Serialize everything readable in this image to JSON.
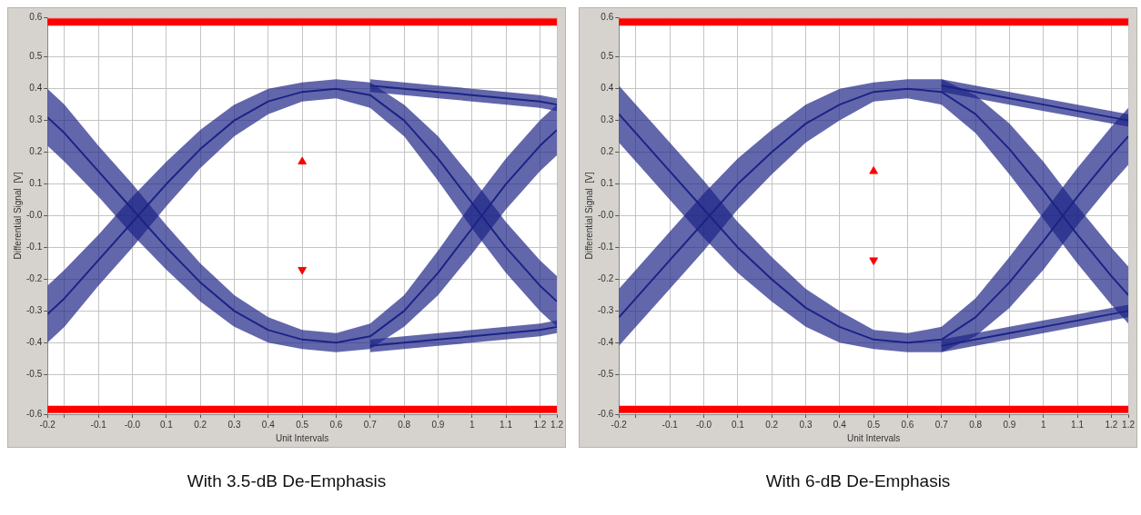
{
  "chart_data": [
    {
      "type": "line",
      "xlabel": "Unit Intervals",
      "ylabel": "Differential Signal  [V]",
      "annotations": [
        "With 3.5-dB De-Emphasis"
      ],
      "xlim": [
        -0.25,
        1.25
      ],
      "xticks": [
        {
          "value": -0.25,
          "label": "-0.2"
        },
        {
          "value": -0.2,
          "label": null
        },
        -0.1,
        {
          "value": 0,
          "label": "-0.0"
        },
        0.1,
        0.2,
        0.3,
        0.4,
        0.5,
        0.6,
        0.7,
        0.8,
        0.9,
        1.0,
        1.1,
        1.2,
        {
          "value": 1.25,
          "label": "1.2"
        }
      ],
      "ylim": [
        -0.625,
        0.625
      ],
      "yticks": [
        {
          "value": -0.625,
          "label": "-0.6"
        },
        -0.5,
        -0.4,
        -0.3,
        -0.2,
        -0.1,
        {
          "value": 0,
          "label": "-0.0"
        },
        0.1,
        0.2,
        0.3,
        0.4,
        0.5,
        {
          "value": 0.625,
          "label": "0.6"
        }
      ],
      "grid": true,
      "legend": false,
      "ref_lines": [
        {
          "axis": "y",
          "value": 0.61,
          "color": "#ff0000"
        },
        {
          "axis": "y",
          "value": -0.61,
          "color": "#ff0000"
        }
      ],
      "series": [
        {
          "type": "line",
          "color": "#1c2386",
          "x": [
            -0.25,
            -0.2,
            -0.1,
            0,
            0.1,
            0.2,
            0.3,
            0.4,
            0.5,
            0.6,
            0.7,
            0.8,
            0.9,
            1.0,
            1.1,
            1.2,
            1.25
          ],
          "values": [
            -0.31,
            -0.26,
            -0.14,
            -0.02,
            0.1,
            0.21,
            0.3,
            0.36,
            0.39,
            0.4,
            0.38,
            0.3,
            0.18,
            0.04,
            -0.1,
            -0.22,
            -0.27
          ],
          "lower": [
            -0.4,
            -0.35,
            -0.22,
            -0.1,
            0.03,
            0.15,
            0.25,
            0.32,
            0.36,
            0.37,
            0.34,
            0.25,
            0.11,
            -0.04,
            -0.18,
            -0.3,
            -0.35
          ],
          "upper": [
            -0.22,
            -0.17,
            -0.06,
            0.06,
            0.17,
            0.27,
            0.35,
            0.4,
            0.42,
            0.43,
            0.42,
            0.35,
            0.25,
            0.12,
            -0.02,
            -0.14,
            -0.19
          ]
        },
        {
          "type": "line",
          "color": "#1c2386",
          "x": [
            -0.25,
            -0.2,
            -0.1,
            0,
            0.1,
            0.2,
            0.3,
            0.4,
            0.5,
            0.6,
            0.7,
            0.8,
            0.9,
            1.0,
            1.1,
            1.2,
            1.25
          ],
          "values": [
            0.31,
            0.26,
            0.14,
            0.02,
            -0.1,
            -0.21,
            -0.3,
            -0.36,
            -0.39,
            -0.4,
            -0.38,
            -0.3,
            -0.18,
            -0.04,
            0.1,
            0.22,
            0.27
          ],
          "lower": [
            0.22,
            0.17,
            0.06,
            -0.06,
            -0.17,
            -0.27,
            -0.35,
            -0.4,
            -0.42,
            -0.43,
            -0.42,
            -0.35,
            -0.25,
            -0.12,
            0.02,
            0.14,
            0.19
          ],
          "upper": [
            0.4,
            0.35,
            0.22,
            0.1,
            -0.03,
            -0.15,
            -0.25,
            -0.32,
            -0.36,
            -0.37,
            -0.34,
            -0.25,
            -0.11,
            0.04,
            0.18,
            0.3,
            0.35
          ]
        },
        {
          "type": "line",
          "color": "#1c2386",
          "x": [
            0.7,
            0.8,
            0.9,
            1.0,
            1.1,
            1.2,
            1.25
          ],
          "values": [
            0.41,
            0.4,
            0.39,
            0.38,
            0.37,
            0.36,
            0.35
          ],
          "lower": [
            0.39,
            0.38,
            0.37,
            0.36,
            0.35,
            0.34,
            0.33
          ],
          "upper": [
            0.43,
            0.42,
            0.41,
            0.4,
            0.39,
            0.38,
            0.37
          ]
        },
        {
          "type": "line",
          "color": "#1c2386",
          "x": [
            0.7,
            0.8,
            0.9,
            1.0,
            1.1,
            1.2,
            1.25
          ],
          "values": [
            -0.41,
            -0.4,
            -0.39,
            -0.38,
            -0.37,
            -0.36,
            -0.35
          ],
          "lower": [
            -0.43,
            -0.42,
            -0.41,
            -0.4,
            -0.39,
            -0.38,
            -0.37
          ],
          "upper": [
            -0.39,
            -0.38,
            -0.37,
            -0.36,
            -0.35,
            -0.34,
            -0.33
          ]
        },
        {
          "type": "scatter",
          "color": "#ff0000",
          "marker": "triangle",
          "x": [
            0.5,
            0.5
          ],
          "values": [
            0.17,
            -0.17
          ]
        }
      ]
    },
    {
      "type": "line",
      "xlabel": "Unit Intervals",
      "ylabel": "Differential Signal  [V]",
      "annotations": [
        "With 6-dB De-Emphasis"
      ],
      "xlim": [
        -0.25,
        1.25
      ],
      "xticks": [
        {
          "value": -0.25,
          "label": "-0.2"
        },
        {
          "value": -0.2,
          "label": null
        },
        -0.1,
        {
          "value": 0,
          "label": "-0.0"
        },
        0.1,
        0.2,
        0.3,
        0.4,
        0.5,
        0.6,
        0.7,
        0.8,
        0.9,
        1.0,
        1.1,
        1.2,
        {
          "value": 1.25,
          "label": "1.2"
        }
      ],
      "ylim": [
        -0.625,
        0.625
      ],
      "yticks": [
        {
          "value": -0.625,
          "label": "-0.6"
        },
        -0.5,
        -0.4,
        -0.3,
        -0.2,
        -0.1,
        {
          "value": 0,
          "label": "-0.0"
        },
        0.1,
        0.2,
        0.3,
        0.4,
        0.5,
        {
          "value": 0.625,
          "label": "0.6"
        }
      ],
      "grid": true,
      "legend": false,
      "ref_lines": [
        {
          "axis": "y",
          "value": 0.61,
          "color": "#ff0000"
        },
        {
          "axis": "y",
          "value": -0.61,
          "color": "#ff0000"
        }
      ],
      "series": [
        {
          "type": "line",
          "color": "#1c2386",
          "x": [
            -0.25,
            -0.2,
            -0.1,
            0,
            0.1,
            0.2,
            0.3,
            0.4,
            0.5,
            0.6,
            0.7,
            0.8,
            0.9,
            1.0,
            1.1,
            1.2,
            1.25
          ],
          "values": [
            -0.32,
            -0.26,
            -0.14,
            -0.02,
            0.1,
            0.2,
            0.29,
            0.35,
            0.39,
            0.4,
            0.39,
            0.32,
            0.21,
            0.08,
            -0.06,
            -0.19,
            -0.25
          ],
          "lower": [
            -0.41,
            -0.35,
            -0.23,
            -0.11,
            0.02,
            0.13,
            0.23,
            0.3,
            0.36,
            0.37,
            0.35,
            0.26,
            0.13,
            -0.01,
            -0.15,
            -0.28,
            -0.34
          ],
          "upper": [
            -0.23,
            -0.17,
            -0.05,
            0.07,
            0.18,
            0.27,
            0.35,
            0.4,
            0.42,
            0.43,
            0.43,
            0.38,
            0.29,
            0.17,
            0.03,
            -0.1,
            -0.16
          ]
        },
        {
          "type": "line",
          "color": "#1c2386",
          "x": [
            -0.25,
            -0.2,
            -0.1,
            0,
            0.1,
            0.2,
            0.3,
            0.4,
            0.5,
            0.6,
            0.7,
            0.8,
            0.9,
            1.0,
            1.1,
            1.2,
            1.25
          ],
          "values": [
            0.32,
            0.26,
            0.14,
            0.02,
            -0.1,
            -0.2,
            -0.29,
            -0.35,
            -0.39,
            -0.4,
            -0.39,
            -0.32,
            -0.21,
            -0.08,
            0.06,
            0.19,
            0.25
          ],
          "lower": [
            0.23,
            0.17,
            0.05,
            -0.07,
            -0.18,
            -0.27,
            -0.35,
            -0.4,
            -0.42,
            -0.43,
            -0.43,
            -0.38,
            -0.29,
            -0.17,
            -0.03,
            0.1,
            0.16
          ],
          "upper": [
            0.41,
            0.35,
            0.23,
            0.11,
            -0.02,
            -0.13,
            -0.23,
            -0.3,
            -0.36,
            -0.37,
            -0.35,
            -0.26,
            -0.13,
            0.01,
            0.15,
            0.28,
            0.34
          ]
        },
        {
          "type": "line",
          "color": "#1c2386",
          "x": [
            0.7,
            0.8,
            0.9,
            1.0,
            1.1,
            1.2,
            1.25
          ],
          "values": [
            0.41,
            0.39,
            0.37,
            0.35,
            0.33,
            0.31,
            0.3
          ],
          "lower": [
            0.39,
            0.37,
            0.35,
            0.33,
            0.31,
            0.29,
            0.28
          ],
          "upper": [
            0.43,
            0.41,
            0.39,
            0.37,
            0.35,
            0.33,
            0.32
          ]
        },
        {
          "type": "line",
          "color": "#1c2386",
          "x": [
            0.7,
            0.8,
            0.9,
            1.0,
            1.1,
            1.2,
            1.25
          ],
          "values": [
            -0.41,
            -0.39,
            -0.37,
            -0.35,
            -0.33,
            -0.31,
            -0.3
          ],
          "lower": [
            -0.43,
            -0.41,
            -0.39,
            -0.37,
            -0.35,
            -0.33,
            -0.32
          ],
          "upper": [
            -0.39,
            -0.37,
            -0.35,
            -0.33,
            -0.31,
            -0.29,
            -0.28
          ]
        },
        {
          "type": "scatter",
          "color": "#ff0000",
          "marker": "triangle",
          "x": [
            0.5,
            0.5
          ],
          "values": [
            0.14,
            -0.14
          ]
        }
      ]
    }
  ]
}
